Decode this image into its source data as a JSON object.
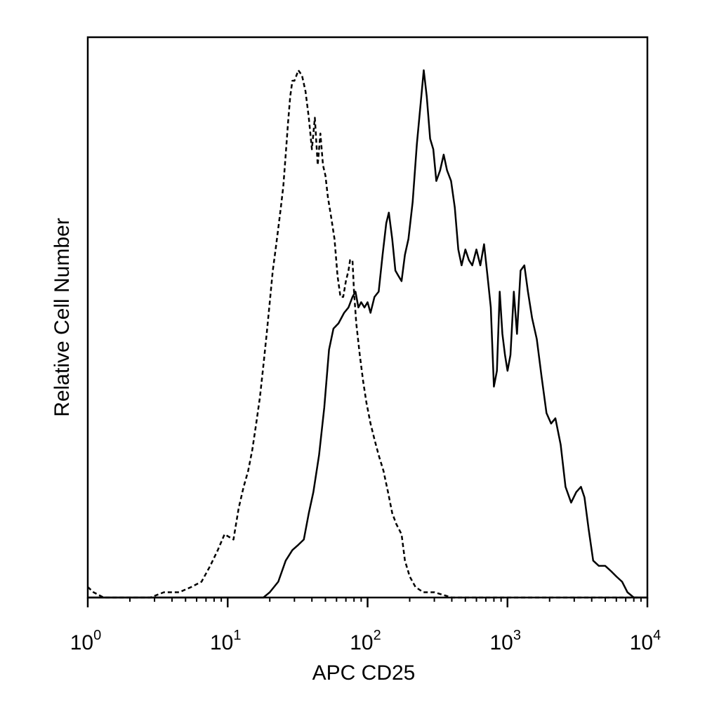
{
  "chart_data": {
    "type": "line",
    "title": "",
    "xlabel": "APC CD25",
    "ylabel": "Relative Cell Number",
    "x_scale": "log",
    "xlim": [
      1,
      10000
    ],
    "ylim": [
      0,
      1
    ],
    "grid": false,
    "legend": "none",
    "x_ticks": [
      {
        "value": 1,
        "base": "10",
        "exp": "0"
      },
      {
        "value": 10,
        "base": "10",
        "exp": "1"
      },
      {
        "value": 100,
        "base": "10",
        "exp": "2"
      },
      {
        "value": 1000,
        "base": "10",
        "exp": "3"
      },
      {
        "value": 10000,
        "base": "10",
        "exp": "4"
      }
    ],
    "series": [
      {
        "style": "dashed",
        "points": [
          [
            1.0,
            0.02
          ],
          [
            1.1,
            0.01
          ],
          [
            1.3,
            0.0
          ],
          [
            2.0,
            0.0
          ],
          [
            2.8,
            0.0
          ],
          [
            3.5,
            0.01
          ],
          [
            4.5,
            0.01
          ],
          [
            5.5,
            0.02
          ],
          [
            6.5,
            0.03
          ],
          [
            7.5,
            0.06
          ],
          [
            8.5,
            0.09
          ],
          [
            9.5,
            0.12
          ],
          [
            11,
            0.11
          ],
          [
            12,
            0.17
          ],
          [
            13,
            0.21
          ],
          [
            14,
            0.24
          ],
          [
            15,
            0.28
          ],
          [
            16,
            0.33
          ],
          [
            17,
            0.38
          ],
          [
            18,
            0.44
          ],
          [
            19,
            0.5
          ],
          [
            20,
            0.56
          ],
          [
            21,
            0.62
          ],
          [
            22,
            0.66
          ],
          [
            23,
            0.7
          ],
          [
            24,
            0.74
          ],
          [
            25,
            0.78
          ],
          [
            26,
            0.84
          ],
          [
            27,
            0.9
          ],
          [
            28,
            0.95
          ],
          [
            29,
            0.98
          ],
          [
            30,
            0.98
          ],
          [
            31,
            0.99
          ],
          [
            32,
            1.0
          ],
          [
            34,
            0.99
          ],
          [
            36,
            0.96
          ],
          [
            38,
            0.91
          ],
          [
            40,
            0.85
          ],
          [
            42,
            0.91
          ],
          [
            44,
            0.82
          ],
          [
            46,
            0.88
          ],
          [
            48,
            0.82
          ],
          [
            50,
            0.8
          ],
          [
            52,
            0.76
          ],
          [
            55,
            0.72
          ],
          [
            58,
            0.68
          ],
          [
            61,
            0.61
          ],
          [
            64,
            0.57
          ],
          [
            67,
            0.57
          ],
          [
            70,
            0.6
          ],
          [
            73,
            0.62
          ],
          [
            75,
            0.64
          ],
          [
            78,
            0.64
          ],
          [
            80,
            0.58
          ],
          [
            83,
            0.52
          ],
          [
            88,
            0.46
          ],
          [
            93,
            0.41
          ],
          [
            98,
            0.37
          ],
          [
            105,
            0.33
          ],
          [
            112,
            0.3
          ],
          [
            120,
            0.27
          ],
          [
            130,
            0.24
          ],
          [
            140,
            0.2
          ],
          [
            150,
            0.16
          ],
          [
            160,
            0.14
          ],
          [
            175,
            0.12
          ],
          [
            185,
            0.07
          ],
          [
            200,
            0.04
          ],
          [
            220,
            0.02
          ],
          [
            250,
            0.01
          ],
          [
            300,
            0.01
          ],
          [
            400,
            0.0
          ],
          [
            600,
            0.0
          ],
          [
            1000,
            0.0
          ],
          [
            3000,
            0.0
          ],
          [
            9000,
            0.0
          ]
        ]
      },
      {
        "style": "solid",
        "points": [
          [
            1.0,
            0.0
          ],
          [
            2.0,
            0.0
          ],
          [
            5.0,
            0.0
          ],
          [
            10,
            0.0
          ],
          [
            15,
            0.0
          ],
          [
            18,
            0.0
          ],
          [
            20,
            0.01
          ],
          [
            23,
            0.03
          ],
          [
            26,
            0.07
          ],
          [
            29,
            0.09
          ],
          [
            32,
            0.1
          ],
          [
            35,
            0.11
          ],
          [
            38,
            0.16
          ],
          [
            41,
            0.2
          ],
          [
            45,
            0.27
          ],
          [
            49,
            0.36
          ],
          [
            53,
            0.47
          ],
          [
            57,
            0.51
          ],
          [
            62,
            0.52
          ],
          [
            68,
            0.54
          ],
          [
            73,
            0.55
          ],
          [
            78,
            0.57
          ],
          [
            82,
            0.58
          ],
          [
            86,
            0.55
          ],
          [
            90,
            0.56
          ],
          [
            95,
            0.55
          ],
          [
            100,
            0.56
          ],
          [
            105,
            0.54
          ],
          [
            112,
            0.57
          ],
          [
            120,
            0.58
          ],
          [
            128,
            0.65
          ],
          [
            136,
            0.71
          ],
          [
            142,
            0.73
          ],
          [
            150,
            0.68
          ],
          [
            158,
            0.62
          ],
          [
            166,
            0.61
          ],
          [
            175,
            0.6
          ],
          [
            185,
            0.65
          ],
          [
            196,
            0.68
          ],
          [
            210,
            0.75
          ],
          [
            225,
            0.86
          ],
          [
            240,
            0.94
          ],
          [
            252,
            1.0
          ],
          [
            265,
            0.95
          ],
          [
            280,
            0.87
          ],
          [
            295,
            0.85
          ],
          [
            310,
            0.79
          ],
          [
            330,
            0.81
          ],
          [
            350,
            0.84
          ],
          [
            370,
            0.81
          ],
          [
            395,
            0.79
          ],
          [
            420,
            0.74
          ],
          [
            445,
            0.66
          ],
          [
            470,
            0.63
          ],
          [
            500,
            0.66
          ],
          [
            530,
            0.64
          ],
          [
            560,
            0.63
          ],
          [
            600,
            0.66
          ],
          [
            640,
            0.63
          ],
          [
            680,
            0.67
          ],
          [
            720,
            0.61
          ],
          [
            760,
            0.55
          ],
          [
            800,
            0.4
          ],
          [
            840,
            0.43
          ],
          [
            880,
            0.58
          ],
          [
            920,
            0.5
          ],
          [
            960,
            0.46
          ],
          [
            1000,
            0.43
          ],
          [
            1050,
            0.46
          ],
          [
            1110,
            0.58
          ],
          [
            1170,
            0.5
          ],
          [
            1240,
            0.62
          ],
          [
            1320,
            0.63
          ],
          [
            1400,
            0.58
          ],
          [
            1500,
            0.53
          ],
          [
            1620,
            0.49
          ],
          [
            1750,
            0.42
          ],
          [
            1900,
            0.35
          ],
          [
            2050,
            0.33
          ],
          [
            2200,
            0.34
          ],
          [
            2400,
            0.29
          ],
          [
            2600,
            0.21
          ],
          [
            2850,
            0.18
          ],
          [
            3100,
            0.2
          ],
          [
            3350,
            0.21
          ],
          [
            3550,
            0.19
          ],
          [
            3800,
            0.13
          ],
          [
            4100,
            0.07
          ],
          [
            4500,
            0.06
          ],
          [
            5000,
            0.06
          ],
          [
            5500,
            0.05
          ],
          [
            6000,
            0.04
          ],
          [
            6600,
            0.03
          ],
          [
            7200,
            0.01
          ],
          [
            8000,
            0.0
          ],
          [
            9000,
            0.0
          ],
          [
            10000,
            0.0
          ]
        ]
      }
    ]
  }
}
